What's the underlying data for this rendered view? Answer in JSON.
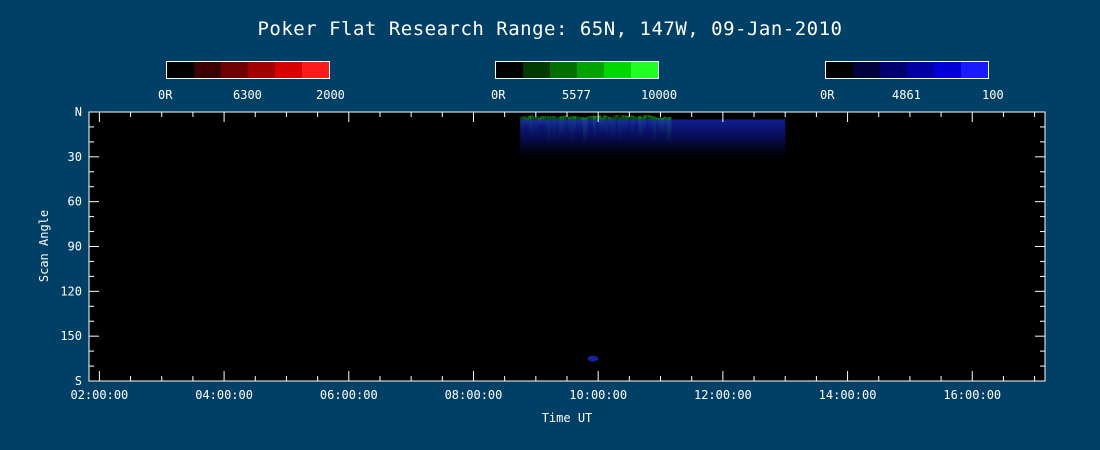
{
  "title": "Poker Flat Research Range: 65N, 147W, 09-Jan-2010",
  "colorbars": [
    {
      "labels": [
        "0R",
        "6300",
        "2000"
      ],
      "colors": [
        "#000000",
        "#3a0000",
        "#6e0000",
        "#a30000",
        "#d60000",
        "#ff1a1a"
      ]
    },
    {
      "labels": [
        "0R",
        "5577",
        "10000"
      ],
      "colors": [
        "#000000",
        "#003a00",
        "#006e00",
        "#00a300",
        "#00d600",
        "#22ff22"
      ]
    },
    {
      "labels": [
        "0R",
        "4861",
        "100"
      ],
      "colors": [
        "#000000",
        "#00003a",
        "#00006e",
        "#0000a3",
        "#0000d6",
        "#1a1aff"
      ]
    }
  ],
  "chart_data": {
    "type": "heatmap",
    "title": "Poker Flat Research Range: 65N, 147W, 09-Jan-2010",
    "xlabel": "Time UT",
    "ylabel": "Scan Angle",
    "x_ticks": [
      "02:00:00",
      "04:00:00",
      "06:00:00",
      "08:00:00",
      "10:00:00",
      "12:00:00",
      "14:00:00",
      "16:00:00"
    ],
    "y_ticks": [
      "N",
      "30",
      "60",
      "90",
      "120",
      "150",
      "S"
    ],
    "xlim": [
      "01:50:00",
      "17:10:00"
    ],
    "ylim": [
      0,
      180
    ],
    "channels": [
      {
        "name": "6300",
        "unit": "R",
        "range": [
          0,
          2000
        ],
        "color": "#ff1a1a"
      },
      {
        "name": "5577",
        "unit": "R",
        "range": [
          0,
          10000
        ],
        "color": "#22ff22"
      },
      {
        "name": "4861",
        "unit": "R",
        "range": [
          0,
          100
        ],
        "color": "#1a1aff"
      }
    ],
    "features": [
      {
        "channel": "5577",
        "time_start": "08:45:00",
        "time_end": "11:10:00",
        "scan_angle_start": 0,
        "scan_angle_end": 15,
        "intensity": 0.6
      },
      {
        "channel": "4861",
        "time_start": "08:45:00",
        "time_end": "13:00:00",
        "scan_angle_start": 5,
        "scan_angle_end": 35,
        "intensity": 0.55
      },
      {
        "channel": "4861",
        "time_start": "09:50:00",
        "time_end": "10:00:00",
        "scan_angle_start": 163,
        "scan_angle_end": 167,
        "intensity": 0.5
      }
    ]
  }
}
